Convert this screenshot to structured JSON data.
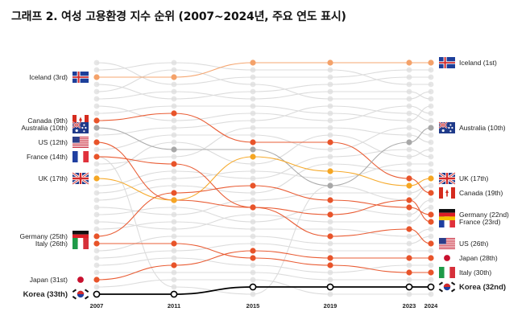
{
  "chart_data": {
    "type": "line",
    "title": "그래프 2. 여성 고용환경 지수 순위 (2007~2024년, 주요 연도 표시)",
    "x": [
      "2007",
      "2011",
      "2015",
      "2019",
      "2023",
      "2024"
    ],
    "y_axis": "rank (1 = top, inverted)",
    "rank_range": [
      1,
      33
    ],
    "grid": false,
    "series": [
      {
        "name": "Iceland",
        "left_label": "Iceland (3rd)",
        "right_label": "Iceland (1st)",
        "ranks": [
          3,
          3,
          1,
          1,
          1,
          1
        ],
        "color": "#f4a26a",
        "flag": "iceland-flag"
      },
      {
        "name": "Canada",
        "left_label": "Canada (9th)",
        "right_label": "Canada (19th)",
        "ranks": [
          9,
          8,
          12,
          12,
          17,
          19
        ],
        "color": "#e8542a",
        "flag": "canada-flag"
      },
      {
        "name": "Australia",
        "left_label": "Australia (10th)",
        "right_label": "Australia (10th)",
        "ranks": [
          10,
          13,
          13,
          18,
          12,
          10
        ],
        "color": "#a8a8a8",
        "flag": "australia-flag"
      },
      {
        "name": "US",
        "left_label": "US (12th)",
        "right_label": "US (26th)",
        "ranks": [
          12,
          20,
          21,
          25,
          24,
          26
        ],
        "color": "#e8542a",
        "flag": "us-flag"
      },
      {
        "name": "France",
        "left_label": "France (14th)",
        "right_label": "France (23rd)",
        "ranks": [
          14,
          15,
          21,
          22,
          20,
          23
        ],
        "color": "#e8542a",
        "flag": "france-flag"
      },
      {
        "name": "UK",
        "left_label": "UK (17th)",
        "right_label": "UK (17th)",
        "ranks": [
          17,
          20,
          14,
          16,
          18,
          17
        ],
        "color": "#f5a623",
        "flag": "uk-flag"
      },
      {
        "name": "Germany",
        "left_label": "Germany (25th)",
        "right_label": "Germany (22nd)",
        "ranks": [
          25,
          19,
          18,
          20,
          21,
          22
        ],
        "color": "#e8542a",
        "flag": "germany-flag"
      },
      {
        "name": "Italy",
        "left_label": "Italy (26th)",
        "right_label": "Italy (30th)",
        "ranks": [
          26,
          26,
          28,
          29,
          30,
          30
        ],
        "color": "#e8542a",
        "flag": "italy-flag"
      },
      {
        "name": "Japan",
        "left_label": "Japan (31st)",
        "right_label": "Japan (28th)",
        "ranks": [
          31,
          29,
          27,
          28,
          28,
          28
        ],
        "color": "#e8542a",
        "flag": "japan-flag"
      },
      {
        "name": "Korea",
        "left_label": "Korea (33th)",
        "right_label": "Korea (32nd)",
        "ranks": [
          33,
          33,
          32,
          32,
          32,
          32
        ],
        "color": "#000000",
        "flag": "korea-flag",
        "highlight": true
      }
    ],
    "background_lines": [
      [
        1,
        4,
        3,
        3,
        2,
        2
      ],
      [
        2,
        1,
        2,
        2,
        4,
        4
      ],
      [
        4,
        6,
        5,
        4,
        3,
        3
      ],
      [
        5,
        2,
        4,
        6,
        6,
        5
      ],
      [
        6,
        5,
        6,
        5,
        5,
        6
      ],
      [
        7,
        9,
        8,
        9,
        7,
        8
      ],
      [
        8,
        7,
        7,
        8,
        9,
        7
      ],
      [
        11,
        10,
        9,
        7,
        8,
        9
      ],
      [
        13,
        11,
        11,
        13,
        10,
        11
      ],
      [
        15,
        14,
        10,
        10,
        11,
        12
      ],
      [
        16,
        12,
        15,
        11,
        14,
        13
      ],
      [
        18,
        16,
        17,
        14,
        13,
        14
      ],
      [
        19,
        17,
        16,
        17,
        15,
        15
      ],
      [
        20,
        18,
        19,
        15,
        16,
        16
      ],
      [
        21,
        22,
        20,
        19,
        19,
        18
      ],
      [
        22,
        21,
        23,
        21,
        22,
        20
      ],
      [
        23,
        24,
        22,
        23,
        23,
        21
      ],
      [
        24,
        23,
        24,
        24,
        25,
        24
      ],
      [
        27,
        25,
        25,
        26,
        26,
        25
      ],
      [
        28,
        27,
        26,
        27,
        27,
        27
      ],
      [
        29,
        28,
        29,
        30,
        29,
        29
      ],
      [
        30,
        30,
        30,
        31,
        31,
        31
      ],
      [
        32,
        31,
        31,
        33,
        33,
        33
      ],
      [
        14,
        32,
        33,
        18,
        20,
        18
      ]
    ]
  }
}
